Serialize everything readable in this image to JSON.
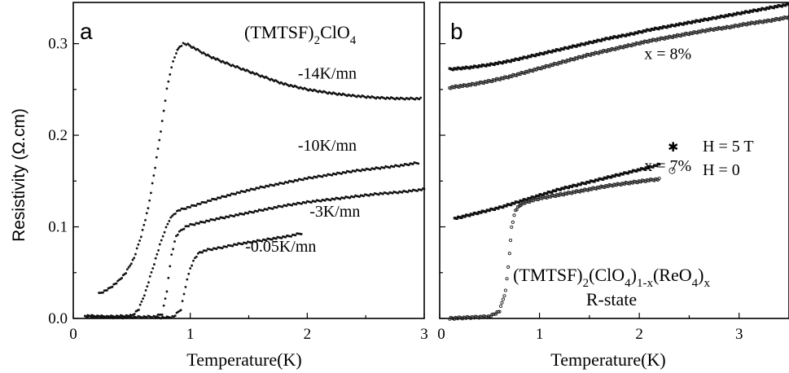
{
  "y_axis_label": "Resistivity (Ω.cm)",
  "chart_data": [
    {
      "type": "scatter",
      "panel_label": "a",
      "title": "(TMTSF)",
      "title_sub": "2",
      "title_rest": "ClO",
      "title_sub2": "4",
      "xlabel": "Temperature(K)",
      "xlim": [
        0,
        3
      ],
      "ylim": [
        0,
        0.345
      ],
      "xticks": [
        "0",
        "1",
        "2",
        "3"
      ],
      "yticks": [
        "0.0",
        "0.1",
        "0.2",
        "0.3"
      ],
      "series": [
        {
          "name": "-14K/mn",
          "x": [
            0.22,
            0.3,
            0.38,
            0.45,
            0.52,
            0.58,
            0.64,
            0.7,
            0.76,
            0.8,
            0.84,
            0.88,
            0.91,
            0.94,
            0.98,
            1.05,
            1.15,
            1.3,
            1.45,
            1.6,
            1.8,
            2.0,
            2.2,
            2.4,
            2.6,
            2.8,
            2.97
          ],
          "y": [
            0.027,
            0.032,
            0.04,
            0.05,
            0.066,
            0.09,
            0.12,
            0.165,
            0.215,
            0.25,
            0.275,
            0.29,
            0.297,
            0.3,
            0.299,
            0.294,
            0.287,
            0.279,
            0.272,
            0.265,
            0.256,
            0.25,
            0.246,
            0.243,
            0.241,
            0.24,
            0.24
          ]
        },
        {
          "name": "-10K/mn",
          "x": [
            0.1,
            0.3,
            0.5,
            0.56,
            0.62,
            0.68,
            0.74,
            0.78,
            0.82,
            0.86,
            0.9,
            0.95,
            1.0,
            1.1,
            1.2,
            1.4,
            1.6,
            1.8,
            2.0,
            2.2,
            2.4,
            2.6,
            2.8,
            2.95
          ],
          "y": [
            0.003,
            0.002,
            0.003,
            0.01,
            0.03,
            0.055,
            0.08,
            0.095,
            0.107,
            0.114,
            0.118,
            0.12,
            0.122,
            0.126,
            0.13,
            0.137,
            0.143,
            0.148,
            0.153,
            0.157,
            0.161,
            0.164,
            0.167,
            0.17
          ]
        },
        {
          "name": "-3K/mn",
          "x": [
            0.1,
            0.4,
            0.7,
            0.76,
            0.8,
            0.84,
            0.88,
            0.92,
            0.96,
            1.0,
            1.1,
            1.2,
            1.4,
            1.6,
            1.8,
            2.0,
            2.2,
            2.4,
            2.6,
            2.8,
            3.0
          ],
          "y": [
            0.002,
            0.001,
            0.002,
            0.005,
            0.03,
            0.07,
            0.09,
            0.096,
            0.1,
            0.102,
            0.105,
            0.108,
            0.113,
            0.118,
            0.123,
            0.127,
            0.13,
            0.133,
            0.136,
            0.138,
            0.141
          ]
        },
        {
          "name": "-0.05K/mn",
          "x": [
            0.7,
            0.8,
            0.86,
            0.92,
            0.96,
            1.0,
            1.04,
            1.08,
            1.15,
            1.25,
            1.4,
            1.55,
            1.7,
            1.85,
            1.95
          ],
          "y": [
            0.001,
            0.001,
            0.002,
            0.01,
            0.035,
            0.055,
            0.066,
            0.072,
            0.075,
            0.077,
            0.081,
            0.084,
            0.087,
            0.09,
            0.093
          ]
        }
      ],
      "series_labels": [
        {
          "text": "-14K/mn",
          "x": 1.92,
          "y": 0.262
        },
        {
          "text": "-10K/mn",
          "x": 1.92,
          "y": 0.183
        },
        {
          "text": "-3K/mn",
          "x": 2.02,
          "y": 0.111
        },
        {
          "text": "-0.05K/mn",
          "x": 1.47,
          "y": 0.073
        }
      ]
    },
    {
      "type": "scatter",
      "panel_label": "b",
      "title": "(TMTSF)",
      "title_sub": "2",
      "title_rest": "(ClO",
      "title_sub2": "4",
      "title_rest2": ")",
      "title_sub3": "1-x",
      "title_rest3": "(ReO",
      "title_sub4": "4",
      "title_rest4": ")",
      "title_sub5": "x",
      "subtitle": "R-state",
      "xlabel": "Temperature(K)",
      "xlim": [
        0,
        3.5
      ],
      "ylim": [
        0,
        0.345
      ],
      "xticks": [
        "0",
        "1",
        "2",
        "3"
      ],
      "yticks": [],
      "legend": [
        {
          "symbol": "✱",
          "label": "H = 5 T"
        },
        {
          "symbol": "○",
          "label": "H = 0"
        }
      ],
      "annotations": [
        {
          "text": "x = 8%",
          "x": 2.05,
          "y": 0.283
        },
        {
          "text": "x = 7%",
          "x": 2.05,
          "y": 0.161
        }
      ],
      "series": [
        {
          "name": "x = 8%, H = 5 T",
          "marker": "filled",
          "x": [
            0.1,
            0.3,
            0.5,
            0.7,
            0.9,
            1.1,
            1.3,
            1.5,
            1.7,
            1.9,
            2.1,
            2.3,
            2.5,
            2.7,
            2.9,
            3.1,
            3.3,
            3.5
          ],
          "y": [
            0.272,
            0.274,
            0.277,
            0.281,
            0.286,
            0.291,
            0.296,
            0.301,
            0.306,
            0.31,
            0.315,
            0.319,
            0.323,
            0.327,
            0.331,
            0.335,
            0.339,
            0.343
          ]
        },
        {
          "name": "x = 8%, H = 0",
          "marker": "open",
          "x": [
            0.1,
            0.3,
            0.5,
            0.7,
            0.9,
            1.1,
            1.3,
            1.5,
            1.7,
            1.9,
            2.1,
            2.3,
            2.5,
            2.7,
            2.9,
            3.1,
            3.3,
            3.5
          ],
          "y": [
            0.252,
            0.255,
            0.259,
            0.264,
            0.27,
            0.276,
            0.282,
            0.288,
            0.293,
            0.298,
            0.303,
            0.307,
            0.311,
            0.315,
            0.318,
            0.322,
            0.325,
            0.329
          ]
        },
        {
          "name": "x = 7%, H = 5 T",
          "marker": "filled",
          "x": [
            0.15,
            0.3,
            0.45,
            0.6,
            0.75,
            0.9,
            1.05,
            1.2,
            1.35,
            1.5,
            1.65,
            1.8,
            1.95,
            2.1,
            2.2
          ],
          "y": [
            0.109,
            0.113,
            0.117,
            0.121,
            0.126,
            0.131,
            0.136,
            0.141,
            0.145,
            0.149,
            0.153,
            0.157,
            0.161,
            0.165,
            0.168
          ]
        },
        {
          "name": "x = 7%, H = 0",
          "marker": "open",
          "x": [
            0.1,
            0.3,
            0.5,
            0.6,
            0.66,
            0.7,
            0.72,
            0.76,
            0.82,
            0.9,
            1.0,
            1.15,
            1.3,
            1.5,
            1.7,
            1.9,
            2.1,
            2.2
          ],
          "y": [
            0.0,
            0.001,
            0.002,
            0.008,
            0.03,
            0.07,
            0.1,
            0.118,
            0.125,
            0.128,
            0.131,
            0.134,
            0.137,
            0.141,
            0.145,
            0.148,
            0.151,
            0.152
          ]
        }
      ]
    }
  ]
}
